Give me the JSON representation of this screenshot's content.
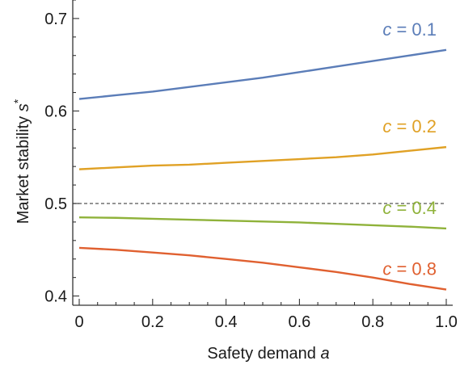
{
  "chart_data": {
    "type": "line",
    "xlabel": "Safety demand",
    "xlabel_var": "a",
    "ylabel": "Market stability",
    "ylabel_var": "s",
    "ylabel_sup": "*",
    "xlim": [
      0,
      1.0
    ],
    "ylim": [
      0.39,
      0.72
    ],
    "x_ticks": [
      0,
      0.2,
      0.4,
      0.6,
      0.8,
      1.0
    ],
    "x_tick_labels": [
      "0",
      "0.2",
      "0.4",
      "0.6",
      "0.8",
      "1.0"
    ],
    "y_ticks": [
      0.4,
      0.5,
      0.6,
      0.7
    ],
    "y_tick_labels": [
      "0.4",
      "0.5",
      "0.6",
      "0.7"
    ],
    "reference_line": {
      "y": 0.5,
      "style": "dashed"
    },
    "grid": false,
    "frame": "left and bottom axes",
    "series": [
      {
        "label_var": "c",
        "label_eq": "=",
        "label_value": "0.1",
        "color": "#5b7db8",
        "x": [
          0,
          0.1,
          0.2,
          0.3,
          0.4,
          0.5,
          0.6,
          0.7,
          0.8,
          0.9,
          1.0
        ],
        "y": [
          0.613,
          0.617,
          0.621,
          0.626,
          0.631,
          0.636,
          0.642,
          0.648,
          0.654,
          0.66,
          0.666
        ]
      },
      {
        "label_var": "c",
        "label_eq": "=",
        "label_value": "0.2",
        "color": "#e0a125",
        "x": [
          0,
          0.1,
          0.2,
          0.3,
          0.4,
          0.5,
          0.6,
          0.7,
          0.8,
          0.9,
          1.0
        ],
        "y": [
          0.537,
          0.539,
          0.541,
          0.542,
          0.544,
          0.546,
          0.548,
          0.55,
          0.553,
          0.557,
          0.561
        ]
      },
      {
        "label_var": "c",
        "label_eq": "=",
        "label_value": "0.4",
        "color": "#8fb23a",
        "x": [
          0,
          0.1,
          0.2,
          0.3,
          0.4,
          0.5,
          0.6,
          0.7,
          0.8,
          0.9,
          1.0
        ],
        "y": [
          0.485,
          0.4845,
          0.4835,
          0.4825,
          0.4815,
          0.4805,
          0.4795,
          0.478,
          0.4765,
          0.475,
          0.473
        ]
      },
      {
        "label_var": "c",
        "label_eq": "=",
        "label_value": "0.8",
        "color": "#e06030",
        "x": [
          0,
          0.1,
          0.2,
          0.3,
          0.4,
          0.5,
          0.6,
          0.7,
          0.8,
          0.9,
          1.0
        ],
        "y": [
          0.452,
          0.45,
          0.447,
          0.444,
          0.44,
          0.436,
          0.431,
          0.426,
          0.42,
          0.413,
          0.407
        ]
      }
    ]
  }
}
